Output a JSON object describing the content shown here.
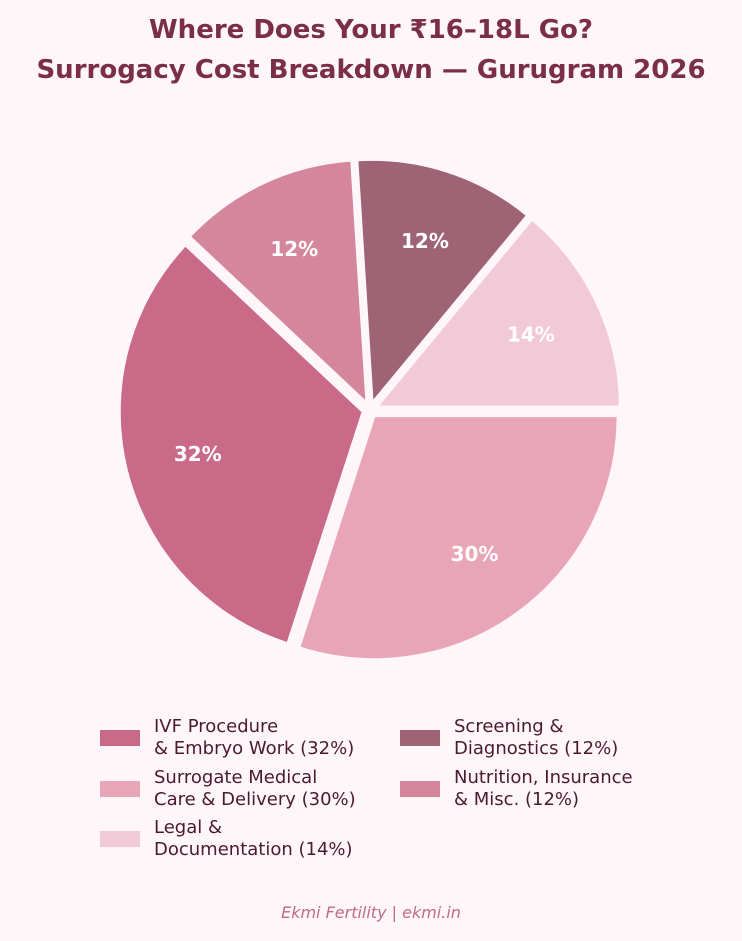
{
  "title": {
    "line1": "Where Does Your ₹16–18L Go?",
    "line2": "Surrogacy Cost Breakdown — Gurugram 2026"
  },
  "chart_data": {
    "type": "pie",
    "start_angle_deg": 0,
    "direction": "counterclockwise",
    "slices": [
      {
        "label": "14%",
        "value": 14,
        "color": "#f2c9d7"
      },
      {
        "label": "12%",
        "value": 12,
        "color": "#9e6374"
      },
      {
        "label": "12%",
        "value": 12,
        "color": "#d4869c"
      },
      {
        "label": "32%",
        "value": 32,
        "color": "#c86a88"
      },
      {
        "label": "30%",
        "value": 30,
        "color": "#e8a5b8"
      }
    ]
  },
  "legend": {
    "placement": "bottom",
    "items": [
      {
        "line1": "IVF Procedure",
        "line2": "& Embryo Work (32%)",
        "color": "#c86a88"
      },
      {
        "line1": "Surrogate Medical",
        "line2": "Care & Delivery (30%)",
        "color": "#e8a5b8"
      },
      {
        "line1": "Legal &",
        "line2": "Documentation (14%)",
        "color": "#f2c9d7"
      },
      {
        "line1": "Screening &",
        "line2": "Diagnostics (12%)",
        "color": "#9e6374"
      },
      {
        "line1": "Nutrition, Insurance",
        "line2": "& Misc. (12%)",
        "color": "#d4869c"
      }
    ]
  },
  "footer": "Ekmi Fertility | ekmi.in"
}
